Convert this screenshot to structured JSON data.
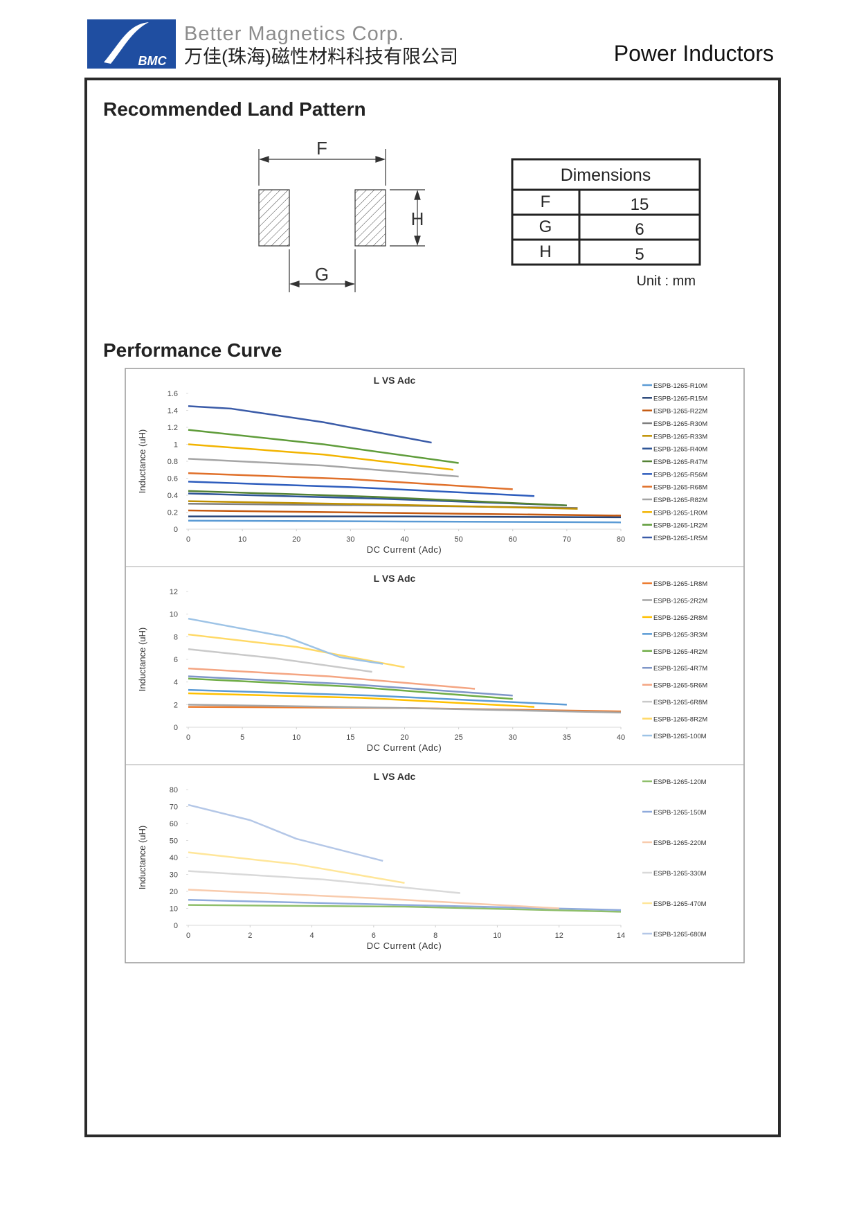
{
  "header": {
    "logo_text": "BMC",
    "company_en": "Better Magnetics Corp.",
    "company_cn": "万佳(珠海)磁性材料科技有限公司",
    "product": "Power Inductors"
  },
  "land_pattern": {
    "title": "Recommended Land Pattern",
    "labels": {
      "f": "F",
      "g": "G",
      "h": "H"
    },
    "table": {
      "header": "Dimensions",
      "rows": [
        [
          "F",
          15
        ],
        [
          "G",
          6
        ],
        [
          "H",
          5
        ]
      ]
    },
    "unit": "Unit : mm"
  },
  "performance": {
    "title": "Performance Curve"
  },
  "chart_data": [
    {
      "type": "line",
      "title": "L VS Adc",
      "x_label": "DC Current (Adc)",
      "y_label": "Inductance (uH)",
      "xlim": [
        0,
        80
      ],
      "xticks": [
        0,
        10,
        20,
        30,
        40,
        50,
        60,
        70,
        80
      ],
      "ylim": [
        0,
        1.6
      ],
      "yticks": [
        0,
        0.2,
        0.4,
        0.6,
        0.8,
        1,
        1.2,
        1.4,
        1.6
      ],
      "series": [
        {
          "name": "ESPB-1265-R10M",
          "color": "#5b9bd5",
          "x": [
            0,
            40,
            80
          ],
          "values": [
            0.1,
            0.09,
            0.08
          ]
        },
        {
          "name": "ESPB-1265-R15M",
          "color": "#264478",
          "x": [
            0,
            40,
            80
          ],
          "values": [
            0.15,
            0.15,
            0.14
          ]
        },
        {
          "name": "ESPB-1265-R22M",
          "color": "#c55a11",
          "x": [
            0,
            40,
            80
          ],
          "values": [
            0.22,
            0.19,
            0.16
          ]
        },
        {
          "name": "ESPB-1265-R30M",
          "color": "#7f7f7f",
          "x": [
            0,
            36,
            72
          ],
          "values": [
            0.3,
            0.28,
            0.25
          ]
        },
        {
          "name": "ESPB-1265-R33M",
          "color": "#bf9000",
          "x": [
            0,
            36,
            72
          ],
          "values": [
            0.33,
            0.29,
            0.24
          ]
        },
        {
          "name": "ESPB-1265-R40M",
          "color": "#2f5597",
          "x": [
            0,
            35,
            70
          ],
          "values": [
            0.42,
            0.36,
            0.28
          ]
        },
        {
          "name": "ESPB-1265-R47M",
          "color": "#548235",
          "x": [
            0,
            35,
            70
          ],
          "values": [
            0.45,
            0.38,
            0.28
          ]
        },
        {
          "name": "ESPB-1265-R56M",
          "color": "#2e5dbd",
          "x": [
            0,
            32,
            64
          ],
          "values": [
            0.56,
            0.49,
            0.39
          ]
        },
        {
          "name": "ESPB-1265-R68M",
          "color": "#e0702a",
          "x": [
            0,
            30,
            60
          ],
          "values": [
            0.66,
            0.59,
            0.47
          ]
        },
        {
          "name": "ESPB-1265-R82M",
          "color": "#a5a5a5",
          "x": [
            0,
            25,
            50
          ],
          "values": [
            0.83,
            0.75,
            0.62
          ]
        },
        {
          "name": "ESPB-1265-1R0M",
          "color": "#f2b400",
          "x": [
            0,
            25,
            49
          ],
          "values": [
            1,
            0.88,
            0.7
          ]
        },
        {
          "name": "ESPB-1265-1R2M",
          "color": "#5f9c3a",
          "x": [
            0,
            25,
            50
          ],
          "values": [
            1.17,
            1.0,
            0.78
          ]
        },
        {
          "name": "ESPB-1265-1R5M",
          "color": "#3a5ba8",
          "x": [
            0,
            8,
            25,
            45
          ],
          "values": [
            1.45,
            1.42,
            1.26,
            1.02
          ]
        }
      ]
    },
    {
      "type": "line",
      "title": "L VS Adc",
      "x_label": "DC Current (Adc)",
      "y_label": "Inductance (uH)",
      "xlim": [
        0,
        40
      ],
      "xticks": [
        0,
        5,
        10,
        15,
        20,
        25,
        30,
        35,
        40
      ],
      "ylim": [
        0,
        12
      ],
      "yticks": [
        0,
        2,
        4,
        6,
        8,
        10,
        12
      ],
      "series": [
        {
          "name": "ESPB-1265-1R8M",
          "color": "#ed7d31",
          "x": [
            0,
            20,
            40
          ],
          "values": [
            1.8,
            1.7,
            1.4
          ]
        },
        {
          "name": "ESPB-1265-2R2M",
          "color": "#a5a5a5",
          "x": [
            0,
            20,
            40
          ],
          "values": [
            2.0,
            1.7,
            1.3
          ]
        },
        {
          "name": "ESPB-1265-2R8M",
          "color": "#ffc000",
          "x": [
            0,
            16,
            32
          ],
          "values": [
            3.0,
            2.6,
            1.8
          ]
        },
        {
          "name": "ESPB-1265-3R3M",
          "color": "#5b9bd5",
          "x": [
            0,
            17,
            35
          ],
          "values": [
            3.3,
            2.8,
            2.0
          ]
        },
        {
          "name": "ESPB-1265-4R2M",
          "color": "#70ad47",
          "x": [
            0,
            15,
            30
          ],
          "values": [
            4.3,
            3.6,
            2.5
          ]
        },
        {
          "name": "ESPB-1265-4R7M",
          "color": "#7f96c8",
          "x": [
            0,
            15,
            30
          ],
          "values": [
            4.5,
            3.8,
            2.8
          ]
        },
        {
          "name": "ESPB-1265-5R6M",
          "color": "#f4a582",
          "x": [
            0,
            13,
            26.5
          ],
          "values": [
            5.2,
            4.5,
            3.4
          ]
        },
        {
          "name": "ESPB-1265-6R8M",
          "color": "#c9c9c9",
          "x": [
            0,
            8,
            17
          ],
          "values": [
            6.9,
            6.1,
            4.9
          ]
        },
        {
          "name": "ESPB-1265-8R2M",
          "color": "#ffd966",
          "x": [
            0,
            10,
            20
          ],
          "values": [
            8.2,
            7.1,
            5.3
          ]
        },
        {
          "name": "ESPB-1265-100M",
          "color": "#9dc3e6",
          "x": [
            0,
            9,
            14,
            18
          ],
          "values": [
            9.6,
            8.0,
            6.2,
            5.6
          ]
        }
      ]
    },
    {
      "type": "line",
      "title": "L VS Adc",
      "x_label": "DC Current (Adc)",
      "y_label": "Inductance (uH)",
      "xlim": [
        0,
        14
      ],
      "xticks": [
        0,
        2,
        4,
        6,
        8,
        10,
        12,
        14
      ],
      "ylim": [
        0,
        80
      ],
      "yticks": [
        0,
        10,
        20,
        30,
        40,
        50,
        60,
        70,
        80
      ],
      "series": [
        {
          "name": "ESPB-1265-120M",
          "color": "#8fbf6b",
          "x": [
            0,
            7,
            14
          ],
          "values": [
            12,
            11,
            8
          ]
        },
        {
          "name": "ESPB-1265-150M",
          "color": "#8faadc",
          "x": [
            0,
            7,
            14
          ],
          "values": [
            15,
            12,
            9
          ]
        },
        {
          "name": "ESPB-1265-220M",
          "color": "#f8cbad",
          "x": [
            0,
            6,
            12
          ],
          "values": [
            21,
            16,
            10
          ]
        },
        {
          "name": "ESPB-1265-330M",
          "color": "#d9d9d9",
          "x": [
            0,
            4.4,
            8.8
          ],
          "values": [
            32,
            27,
            19
          ]
        },
        {
          "name": "ESPB-1265-470M",
          "color": "#ffe699",
          "x": [
            0,
            3.5,
            7
          ],
          "values": [
            43,
            36,
            25
          ]
        },
        {
          "name": "ESPB-1265-680M",
          "color": "#b4c7e7",
          "x": [
            0,
            2,
            3.5,
            6.3
          ],
          "values": [
            71,
            62,
            51,
            38
          ]
        }
      ]
    }
  ]
}
